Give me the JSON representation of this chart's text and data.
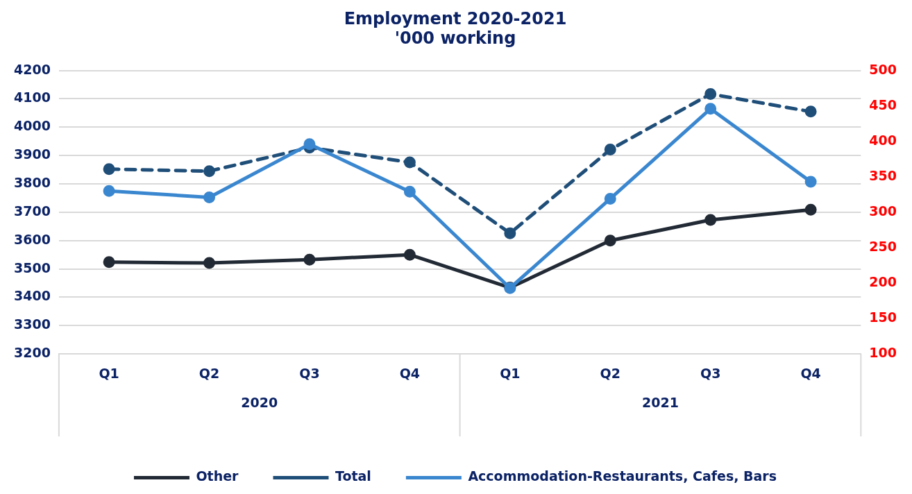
{
  "chart_data": {
    "type": "line",
    "title": "Employment 2020-2021",
    "subtitle": "'000 working",
    "categories": [
      "Q1",
      "Q2",
      "Q3",
      "Q4",
      "Q1",
      "Q2",
      "Q3",
      "Q4"
    ],
    "annotations": [
      "2020",
      "2021"
    ],
    "series": [
      {
        "name": "Other",
        "color": "#222a35",
        "values": [
          3524,
          3521,
          3533,
          3550,
          3434,
          3600,
          3673,
          3709
        ]
      },
      {
        "name": "Total",
        "color": "#1f4e79",
        "line_style": "dashed",
        "values": [
          3852,
          3845,
          3928,
          3876,
          3626,
          3921,
          4117,
          4055
        ]
      },
      {
        "name": "Accommodation-Restaurants, Cafes, Bars",
        "color": "#3a87d0",
        "axis": "y2",
        "values": [
          330,
          321,
          396,
          329,
          193,
          319,
          446,
          343
        ]
      }
    ],
    "ylim": [
      3200,
      4200
    ],
    "yticks": [
      3200,
      3300,
      3400,
      3500,
      3600,
      3700,
      3800,
      3900,
      4000,
      4100,
      4200
    ],
    "y2lim": [
      100,
      500
    ],
    "y2ticks": [
      100,
      150,
      200,
      250,
      300,
      350,
      400,
      450,
      500
    ],
    "grid": "y",
    "legend": "bottom",
    "marker": "circle"
  }
}
